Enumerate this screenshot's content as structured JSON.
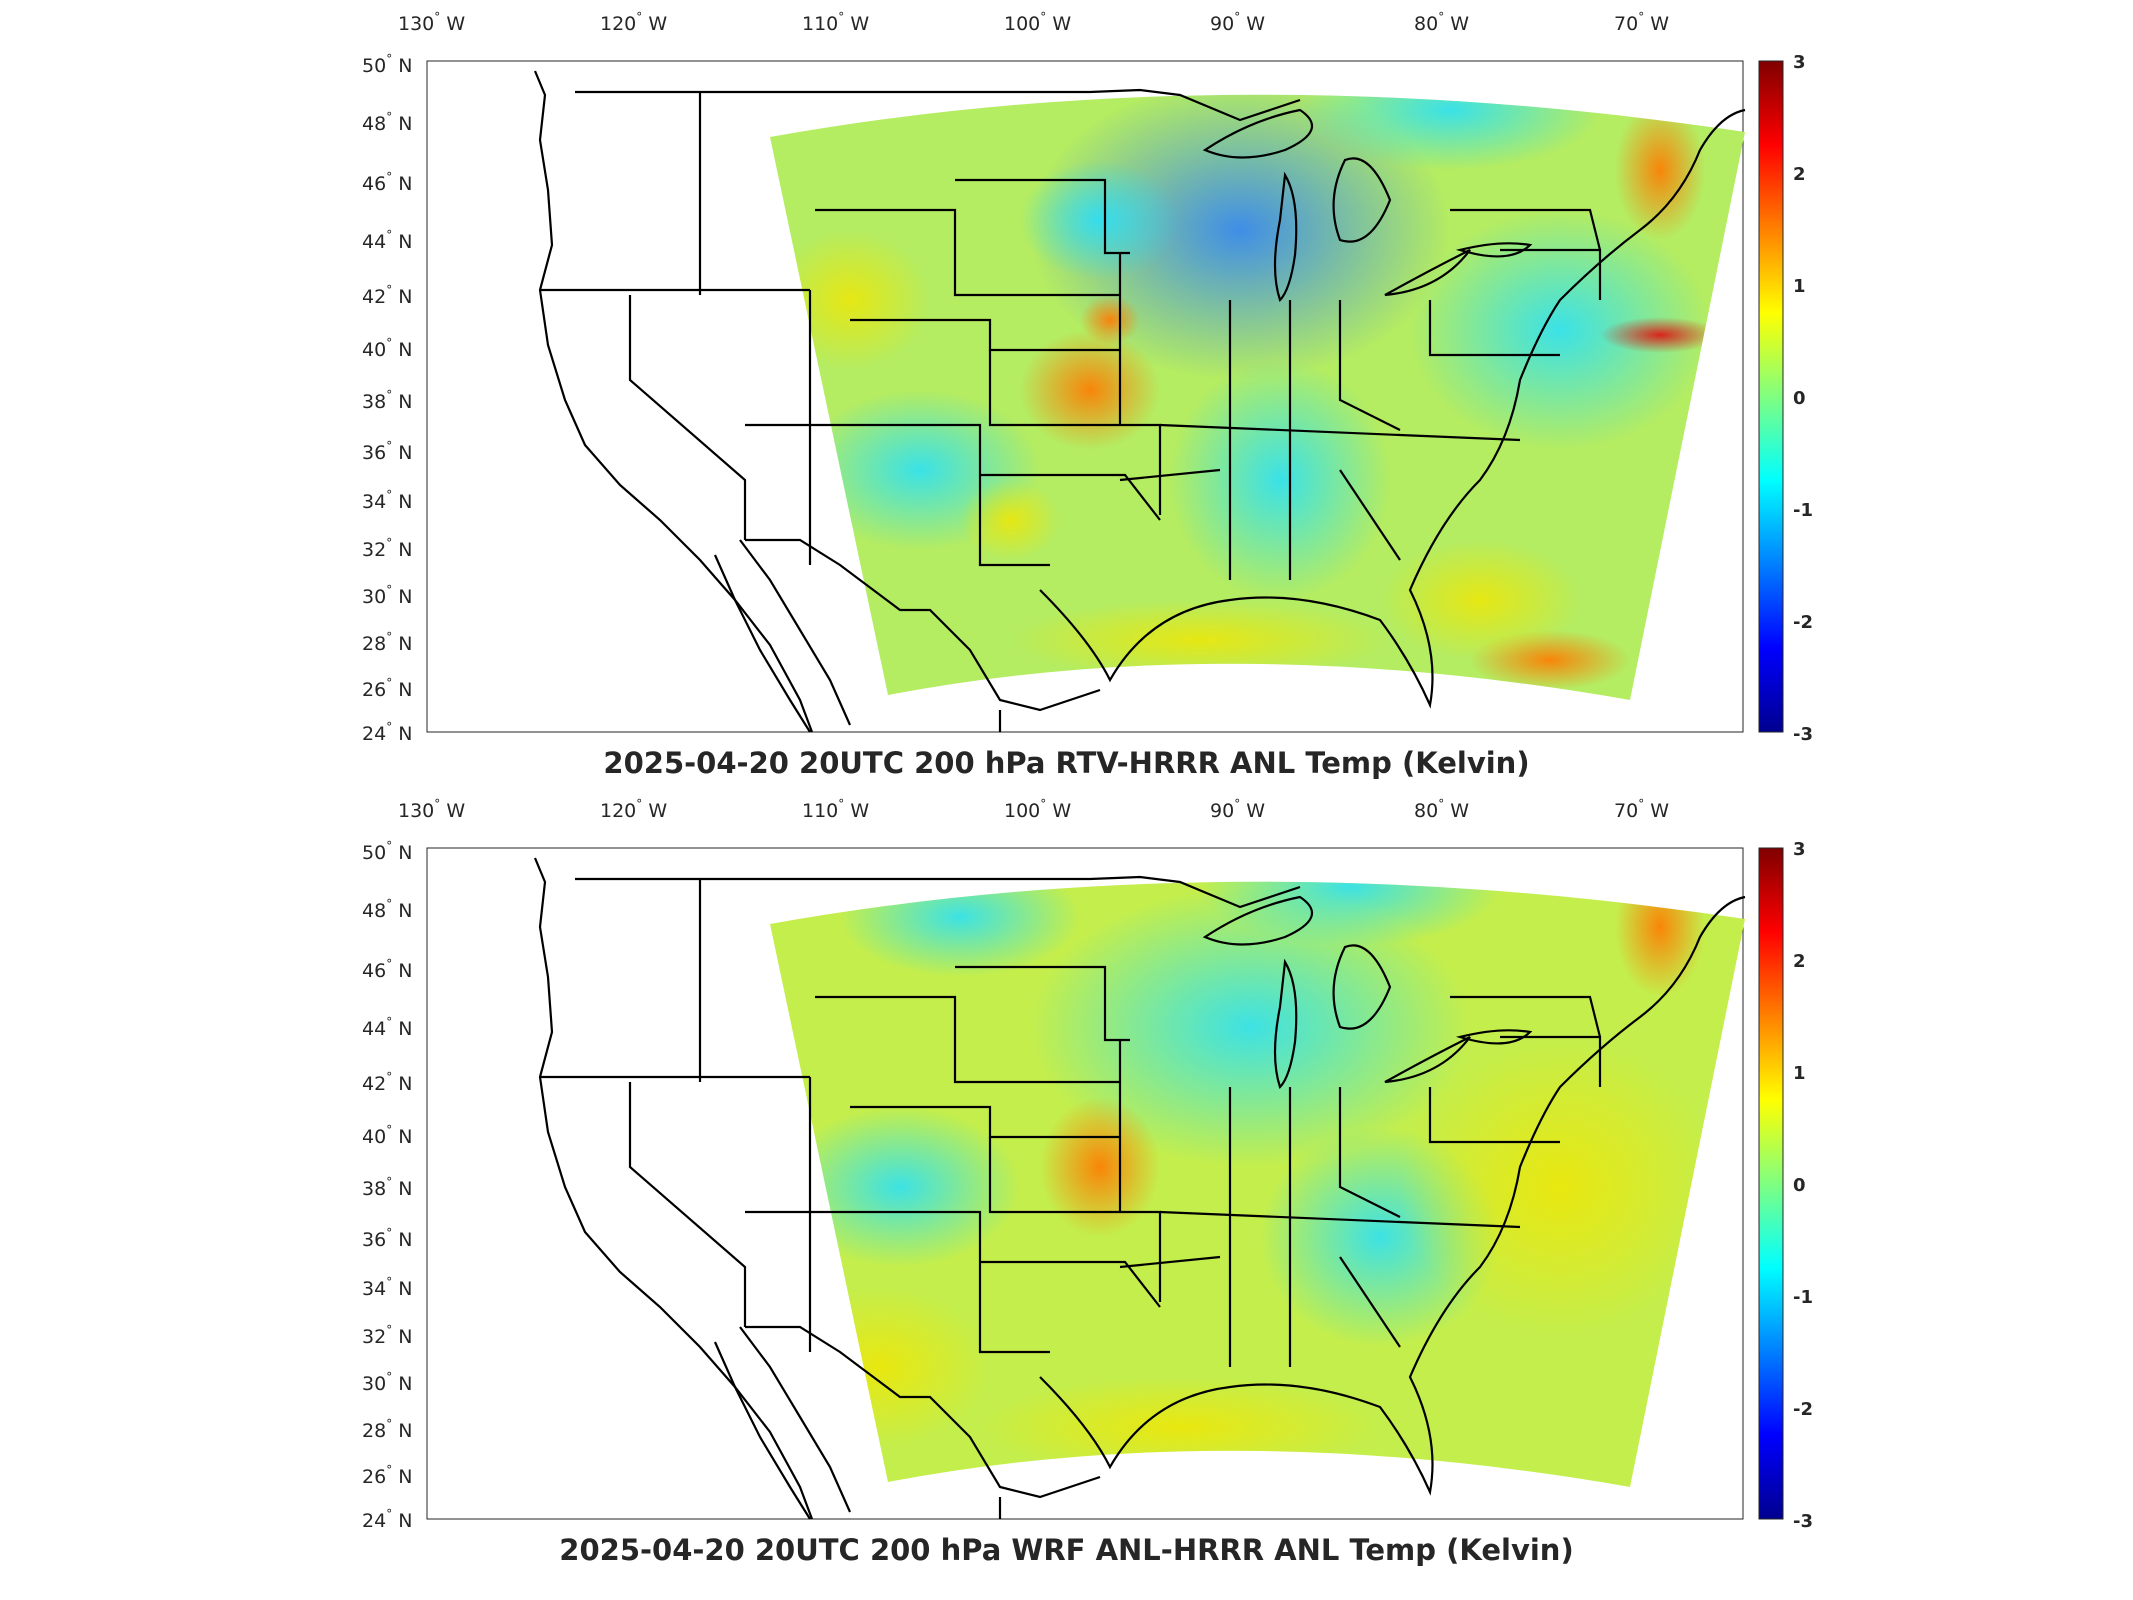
{
  "lon_labels": [
    "130",
    "120",
    "110",
    "100",
    "90",
    "80",
    "70"
  ],
  "lon_suffix": "W",
  "lat_labels": [
    "50",
    "48",
    "46",
    "44",
    "42",
    "40",
    "38",
    "36",
    "34",
    "32",
    "30",
    "28",
    "26",
    "24"
  ],
  "lat_suffix": "N",
  "colorbar": {
    "ticks": [
      "3",
      "2",
      "1",
      "0",
      "-1",
      "-2",
      "-3"
    ],
    "range": [
      -3,
      3
    ],
    "colormap": "jet",
    "colors": [
      "#00008f",
      "#0000ff",
      "#0080ff",
      "#00ffff",
      "#80ff80",
      "#ffff00",
      "#ff8000",
      "#ff0000",
      "#800000"
    ]
  },
  "panels": [
    {
      "title": "2025-04-20 20UTC 200 hPa RTV-HRRR ANL Temp (Kelvin)"
    },
    {
      "title": "2025-04-20 20UTC 200 hPa WRF ANL-HRRR ANL Temp (Kelvin)"
    }
  ]
}
